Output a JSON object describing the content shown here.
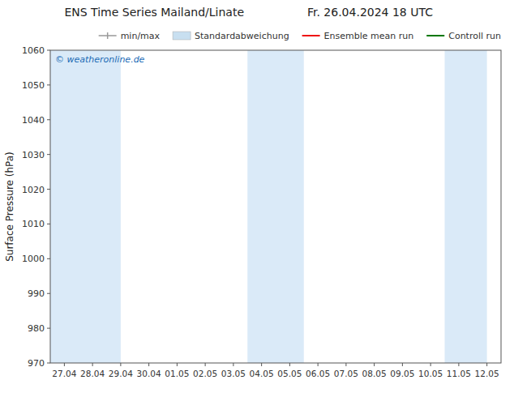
{
  "chart_data": {
    "type": "line",
    "title": "ENS Time Series Mailand/Linate",
    "subtitle": "Fr. 26.04.2024 18 UTC",
    "y_label": "Surface Pressure (hPa)",
    "categories": [
      "27.04",
      "28.04",
      "29.04",
      "30.04",
      "01.05",
      "02.05",
      "03.05",
      "04.05",
      "05.05",
      "06.05",
      "07.05",
      "08.05",
      "09.05",
      "10.05",
      "11.05",
      "12.05"
    ],
    "xlim": [
      -0.5,
      15.5
    ],
    "ylim": [
      970,
      1060
    ],
    "yticks": [
      970,
      980,
      990,
      1000,
      1010,
      1020,
      1030,
      1040,
      1050,
      1060
    ],
    "grid": false,
    "legend": "upper right",
    "shaded_ranges": [
      {
        "start": -0.5,
        "end": 2.0,
        "color": "#daeaf8"
      },
      {
        "start": 6.5,
        "end": 8.5,
        "color": "#daeaf8"
      },
      {
        "start": 13.5,
        "end": 15.0,
        "color": "#daeaf8"
      }
    ],
    "series": [
      {
        "name": "min/max",
        "color": "#999999",
        "type": "errorbar"
      },
      {
        "name": "Standardabweichung",
        "color": "#c8dff0",
        "type": "band"
      },
      {
        "name": "Ensemble mean run",
        "color": "#ee1111",
        "type": "line"
      },
      {
        "name": "Controll run",
        "color": "#007700",
        "type": "line"
      }
    ],
    "annotations": [
      {
        "text": "© weatheronline.de",
        "color": "#1a6ab5"
      }
    ]
  }
}
